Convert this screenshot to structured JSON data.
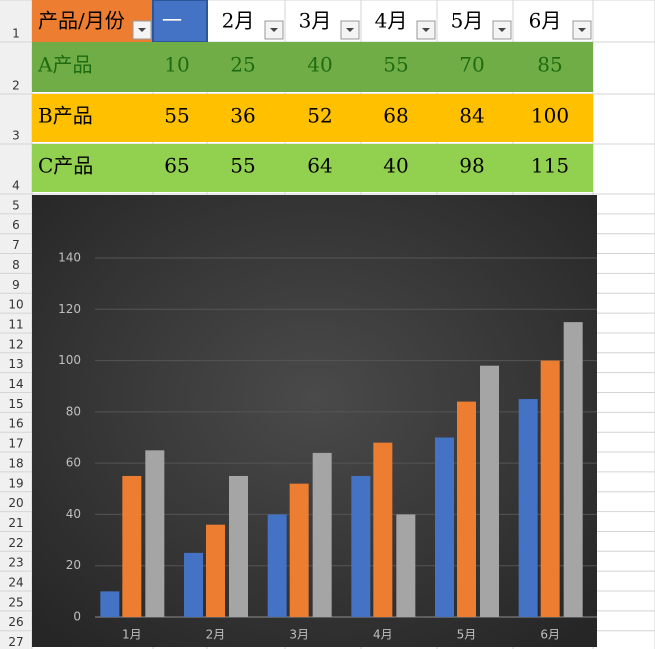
{
  "table": {
    "header": [
      "产品/月份",
      "一",
      "2月",
      "3月",
      "4月",
      "5月",
      "6月"
    ],
    "rows": [
      [
        "A产品",
        10,
        25,
        40,
        55,
        70,
        85
      ],
      [
        "B产品",
        55,
        36,
        52,
        68,
        84,
        100
      ],
      [
        "C产品",
        65,
        55,
        64,
        40,
        98,
        115
      ]
    ],
    "row_numbers": [
      1,
      2,
      3,
      4,
      5,
      6,
      7,
      8,
      9,
      10,
      11,
      12,
      13,
      14,
      15,
      16,
      17,
      18,
      19,
      20,
      21,
      22,
      23,
      24,
      25,
      26,
      27
    ]
  },
  "chart_data": {
    "type": "bar",
    "categories": [
      "1月",
      "2月",
      "3月",
      "4月",
      "5月",
      "6月"
    ],
    "series": [
      {
        "color": "#4472c4",
        "values": [
          10,
          25,
          40,
          55,
          70,
          85
        ]
      },
      {
        "color": "#ed7d31",
        "values": [
          55,
          36,
          52,
          68,
          84,
          100
        ]
      },
      {
        "color": "#a5a5a5",
        "values": [
          65,
          55,
          64,
          40,
          98,
          115
        ]
      }
    ],
    "ylim": [
      0,
      140
    ],
    "yticks": [
      0,
      20,
      40,
      60,
      80,
      100,
      120,
      140
    ],
    "grid": true
  }
}
